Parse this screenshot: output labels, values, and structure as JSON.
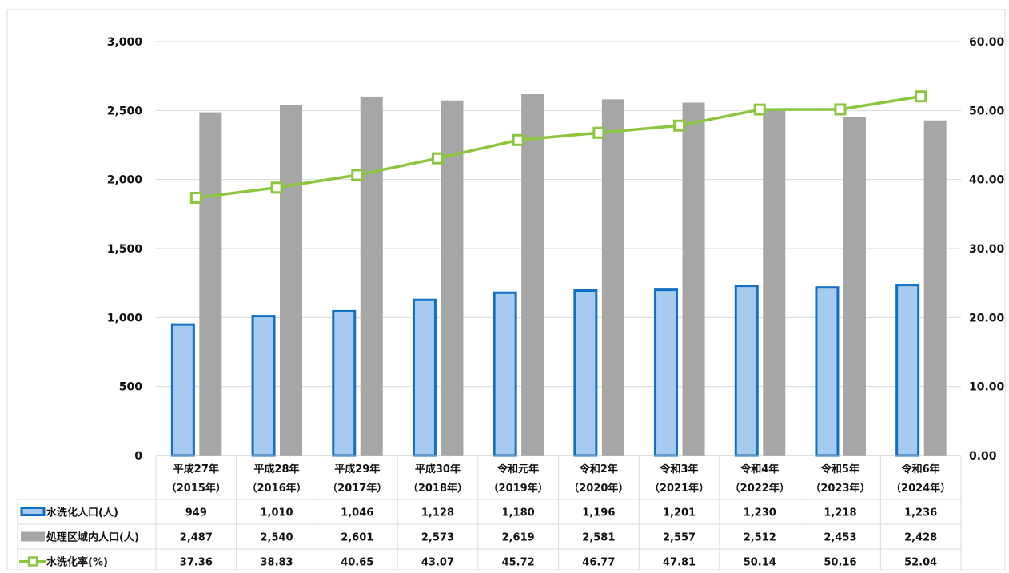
{
  "chart_data": {
    "type": "bar",
    "categories": [
      [
        "平成27年",
        "（2015年）"
      ],
      [
        "平成28年",
        "（2016年）"
      ],
      [
        "平成29年",
        "（2017年）"
      ],
      [
        "平成30年",
        "（2018年）"
      ],
      [
        "令和元年",
        "（2019年）"
      ],
      [
        "令和2年",
        "（2020年）"
      ],
      [
        "令和3年",
        "（2021年）"
      ],
      [
        "令和4年",
        "（2022年）"
      ],
      [
        "令和5年",
        "（2023年）"
      ],
      [
        "令和6年",
        "（2024年）"
      ]
    ],
    "series": [
      {
        "name": "水洗化人口(人)",
        "type": "bar",
        "axis": "left",
        "color": "#1170c4",
        "fill": "#a7cbef",
        "values": [
          949,
          1010,
          1046,
          1128,
          1180,
          1196,
          1201,
          1230,
          1218,
          1236
        ],
        "labels": [
          "949",
          "1,010",
          "1,046",
          "1,128",
          "1,180",
          "1,196",
          "1,201",
          "1,230",
          "1,218",
          "1,236"
        ]
      },
      {
        "name": "処理区域内人口(人)",
        "type": "bar",
        "axis": "left",
        "color": "#a6a6a6",
        "values": [
          2487,
          2540,
          2601,
          2573,
          2619,
          2581,
          2557,
          2512,
          2453,
          2428
        ],
        "labels": [
          "2,487",
          "2,540",
          "2,601",
          "2,573",
          "2,619",
          "2,581",
          "2,557",
          "2,512",
          "2,453",
          "2,428"
        ]
      },
      {
        "name": "水洗化率(%)",
        "type": "line",
        "axis": "right",
        "color": "#8cc63f",
        "values": [
          37.36,
          38.83,
          40.65,
          43.07,
          45.72,
          46.77,
          47.81,
          50.14,
          50.16,
          52.04
        ],
        "labels": [
          "37.36",
          "38.83",
          "40.65",
          "43.07",
          "45.72",
          "46.77",
          "47.81",
          "50.14",
          "50.16",
          "52.04"
        ]
      }
    ],
    "y_left": {
      "min": 0,
      "max": 3000,
      "ticks": [
        "0",
        "500",
        "1,000",
        "1,500",
        "2,000",
        "2,500",
        "3,000"
      ]
    },
    "y_right": {
      "min": 0,
      "max": 60,
      "ticks": [
        "0.00",
        "10.00",
        "20.00",
        "30.00",
        "40.00",
        "50.00",
        "60.00"
      ]
    },
    "grid": true,
    "legend": "data-table-below"
  }
}
